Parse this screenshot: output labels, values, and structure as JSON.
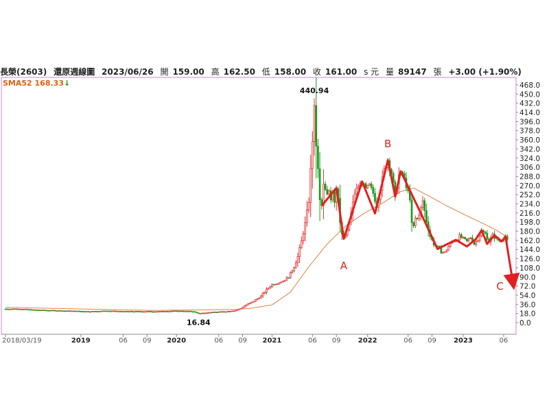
{
  "header": {
    "stock": "長榮(2603)",
    "chart_kind": "還原週線圖",
    "date": "2023/06/26",
    "open_label": "開",
    "open": "159.00",
    "high_label": "高",
    "high": "162.50",
    "low_label": "低",
    "low": "158.00",
    "close_label": "收",
    "close": "161.00",
    "unit": "s 元",
    "volume_label": "量",
    "volume": "89147",
    "volume_unit": "張",
    "change": "+3.00 (+1.90%)"
  },
  "sma_label": "SMA52 168.33",
  "sma_arrow": "↓",
  "colors": {
    "up": "#e03030",
    "down": "#1a9a1a",
    "sma": "#e08040",
    "wave": "#e02020",
    "frame": "#cc88cc"
  },
  "chart_data": {
    "type": "candlestick",
    "y_ticks": [
      "468.0",
      "450.0",
      "432.0",
      "414.0",
      "396.0",
      "378.0",
      "360.0",
      "342.0",
      "324.0",
      "306.0",
      "288.0",
      "270.0",
      "252.0",
      "234.0",
      "216.0",
      "198.0",
      "180.0",
      "162.0",
      "144.0",
      "126.0",
      "108.0",
      "90.0",
      "72.0",
      "54.0",
      "36.0",
      "18.0",
      "0.0"
    ],
    "ylim": [
      0,
      468
    ],
    "x_ticks": [
      {
        "label": "2018/03/19",
        "t": 0
      },
      {
        "label": "2019",
        "t": 41
      },
      {
        "label": "06",
        "t": 64
      },
      {
        "label": "09",
        "t": 77
      },
      {
        "label": "2020",
        "t": 93
      },
      {
        "label": "06",
        "t": 116
      },
      {
        "label": "09",
        "t": 129
      },
      {
        "label": "2021",
        "t": 145
      },
      {
        "label": "06",
        "t": 167
      },
      {
        "label": "09",
        "t": 180
      },
      {
        "label": "2022",
        "t": 197
      },
      {
        "label": "06",
        "t": 219
      },
      {
        "label": "09",
        "t": 232
      },
      {
        "label": "2023",
        "t": 249
      },
      {
        "label": "06",
        "t": 271
      }
    ],
    "t_range": [
      -1.5,
      277
    ],
    "close_anchors": [
      [
        0,
        27
      ],
      [
        8,
        27
      ],
      [
        15,
        25
      ],
      [
        25,
        24
      ],
      [
        35,
        23
      ],
      [
        45,
        22
      ],
      [
        55,
        23
      ],
      [
        65,
        22
      ],
      [
        75,
        22
      ],
      [
        85,
        22
      ],
      [
        93,
        23
      ],
      [
        102,
        22
      ],
      [
        105,
        18
      ],
      [
        110,
        20
      ],
      [
        120,
        22
      ],
      [
        125,
        24
      ],
      [
        128,
        28
      ],
      [
        131,
        35
      ],
      [
        135,
        42
      ],
      [
        139,
        52
      ],
      [
        142,
        65
      ],
      [
        145,
        75
      ],
      [
        148,
        78
      ],
      [
        151,
        82
      ],
      [
        154,
        90
      ],
      [
        157,
        110
      ],
      [
        159,
        130
      ],
      [
        161,
        160
      ],
      [
        163,
        195
      ],
      [
        165,
        240
      ],
      [
        166,
        300
      ],
      [
        167,
        360
      ],
      [
        168,
        420
      ],
      [
        169,
        350
      ],
      [
        170,
        300
      ],
      [
        171,
        240
      ],
      [
        172,
        230
      ],
      [
        173,
        270
      ],
      [
        174,
        260
      ],
      [
        175,
        250
      ],
      [
        176,
        260
      ],
      [
        177,
        245
      ],
      [
        178,
        260
      ],
      [
        179,
        240
      ],
      [
        180,
        265
      ],
      [
        181,
        248
      ],
      [
        182,
        200
      ],
      [
        183,
        175
      ],
      [
        184,
        165
      ],
      [
        186,
        180
      ],
      [
        188,
        215
      ],
      [
        190,
        255
      ],
      [
        192,
        270
      ],
      [
        194,
        275
      ],
      [
        196,
        262
      ],
      [
        198,
        270
      ],
      [
        200,
        255
      ],
      [
        202,
        230
      ],
      [
        204,
        265
      ],
      [
        206,
        300
      ],
      [
        208,
        320
      ],
      [
        210,
        295
      ],
      [
        212,
        250
      ],
      [
        214,
        290
      ],
      [
        216,
        293
      ],
      [
        218,
        270
      ],
      [
        220,
        240
      ],
      [
        221,
        195
      ],
      [
        222,
        190
      ],
      [
        223,
        205
      ],
      [
        225,
        210
      ],
      [
        227,
        240
      ],
      [
        229,
        200
      ],
      [
        231,
        170
      ],
      [
        233,
        155
      ],
      [
        235,
        148
      ],
      [
        237,
        140
      ],
      [
        239,
        138
      ],
      [
        241,
        150
      ],
      [
        243,
        160
      ],
      [
        245,
        162
      ],
      [
        247,
        170
      ],
      [
        249,
        165
      ],
      [
        251,
        160
      ],
      [
        253,
        168
      ],
      [
        255,
        155
      ],
      [
        257,
        165
      ],
      [
        259,
        180
      ],
      [
        261,
        175
      ],
      [
        263,
        160
      ],
      [
        265,
        172
      ],
      [
        267,
        165
      ],
      [
        269,
        160
      ],
      [
        271,
        167
      ],
      [
        272,
        170
      ],
      [
        273,
        161
      ]
    ],
    "sma_anchors": [
      [
        0,
        30
      ],
      [
        40,
        27
      ],
      [
        80,
        24
      ],
      [
        125,
        26
      ],
      [
        133,
        28
      ],
      [
        145,
        35
      ],
      [
        155,
        60
      ],
      [
        165,
        110
      ],
      [
        175,
        155
      ],
      [
        185,
        190
      ],
      [
        195,
        215
      ],
      [
        205,
        235
      ],
      [
        215,
        258
      ],
      [
        222,
        265
      ],
      [
        230,
        250
      ],
      [
        240,
        230
      ],
      [
        250,
        212
      ],
      [
        260,
        195
      ],
      [
        268,
        180
      ],
      [
        273,
        168
      ]
    ],
    "labels": [
      {
        "text": "440.94",
        "t": 168,
        "y": 440.94,
        "kind": "high"
      },
      {
        "text": "16.84",
        "t": 105,
        "y": 16.84,
        "kind": "low"
      },
      {
        "text": "A",
        "t": 184,
        "y": 105,
        "kind": "wave"
      },
      {
        "text": "B",
        "t": 208,
        "y": 345,
        "kind": "wave"
      },
      {
        "text": "C",
        "t": 269,
        "y": 65,
        "kind": "wave"
      }
    ],
    "wave_path": [
      [
        172,
        230
      ],
      [
        180,
        265
      ],
      [
        184,
        165
      ],
      [
        194,
        278
      ],
      [
        201,
        215
      ],
      [
        208,
        320
      ],
      [
        212,
        248
      ],
      [
        215,
        298
      ],
      [
        228,
        200
      ],
      [
        235,
        145
      ],
      [
        245,
        163
      ],
      [
        251,
        150
      ],
      [
        256,
        165
      ],
      [
        259,
        182
      ],
      [
        262,
        155
      ],
      [
        266,
        172
      ],
      [
        270,
        160
      ],
      [
        272,
        170
      ],
      [
        276,
        80
      ]
    ]
  }
}
